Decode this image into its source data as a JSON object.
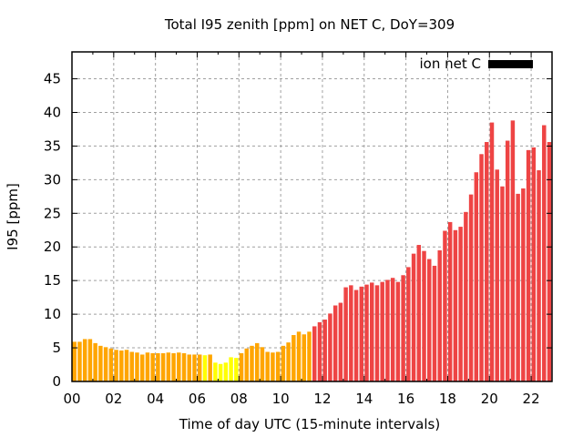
{
  "chart_data": {
    "type": "bar",
    "title": "Total I95 zenith [ppm] on NET C, DoY=309",
    "xlabel": "Time of day UTC (15-minute intervals)",
    "ylabel": "I95 [ppm]",
    "ylim": [
      0,
      49
    ],
    "xlim_hours": [
      0,
      23
    ],
    "grid": true,
    "legend": {
      "position": "top-right",
      "entries": [
        {
          "label": "ion net C",
          "color": "#000000"
        }
      ]
    },
    "yticks": [
      "0",
      "5",
      "10",
      "15",
      "20",
      "25",
      "30",
      "35",
      "40",
      "45"
    ],
    "ytick_values": [
      0,
      5,
      10,
      15,
      20,
      25,
      30,
      35,
      40,
      45
    ],
    "xticks": [
      "00",
      "02",
      "04",
      "06",
      "08",
      "10",
      "12",
      "14",
      "16",
      "18",
      "20",
      "22"
    ],
    "xtick_values_hours": [
      0,
      2,
      4,
      6,
      8,
      10,
      12,
      14,
      16,
      18,
      20,
      22
    ],
    "interval_minutes": 15,
    "colors": {
      "low": "#ffff00",
      "medium": "#ffa500",
      "high": "#ee4444"
    },
    "values": [
      5.9,
      5.9,
      6.3,
      6.3,
      5.7,
      5.3,
      5.1,
      4.9,
      4.7,
      4.6,
      4.7,
      4.4,
      4.3,
      4.0,
      4.3,
      4.2,
      4.2,
      4.2,
      4.3,
      4.2,
      4.3,
      4.2,
      4.0,
      4.0,
      4.0,
      3.9,
      4.0,
      2.8,
      2.6,
      2.8,
      3.6,
      3.5,
      4.2,
      4.9,
      5.3,
      5.7,
      5.1,
      4.4,
      4.3,
      4.4,
      5.3,
      5.8,
      6.9,
      7.4,
      7.0,
      7.4,
      8.2,
      8.8,
      9.2,
      10.1,
      11.3,
      11.7,
      14.0,
      14.3,
      13.6,
      14.1,
      14.4,
      14.7,
      14.3,
      14.8,
      15.1,
      15.4,
      14.8,
      15.8,
      17.0,
      19.0,
      20.3,
      19.4,
      18.2,
      17.2,
      19.5,
      22.4,
      23.7,
      22.5,
      23.0,
      25.2,
      27.8,
      31.1,
      33.8,
      35.6,
      38.5,
      31.5,
      29.0,
      35.8,
      38.8,
      27.9,
      28.7,
      34.4,
      34.8,
      31.4,
      38.1,
      35.6
    ],
    "levels": [
      "medium",
      "medium",
      "medium",
      "medium",
      "medium",
      "medium",
      "medium",
      "medium",
      "medium",
      "medium",
      "medium",
      "medium",
      "medium",
      "medium",
      "medium",
      "medium",
      "medium",
      "medium",
      "medium",
      "medium",
      "medium",
      "medium",
      "medium",
      "medium",
      "medium",
      "low",
      "medium",
      "low",
      "low",
      "low",
      "low",
      "low",
      "medium",
      "medium",
      "medium",
      "medium",
      "medium",
      "medium",
      "medium",
      "medium",
      "medium",
      "medium",
      "medium",
      "medium",
      "medium",
      "medium",
      "high",
      "high",
      "high",
      "high",
      "high",
      "high",
      "high",
      "high",
      "high",
      "high",
      "high",
      "high",
      "high",
      "high",
      "high",
      "high",
      "high",
      "high",
      "high",
      "high",
      "high",
      "high",
      "high",
      "high",
      "high",
      "high",
      "high",
      "high",
      "high",
      "high",
      "high",
      "high",
      "high",
      "high",
      "high",
      "high",
      "high",
      "high",
      "high",
      "high",
      "high",
      "high",
      "high",
      "high",
      "high",
      "high"
    ]
  }
}
